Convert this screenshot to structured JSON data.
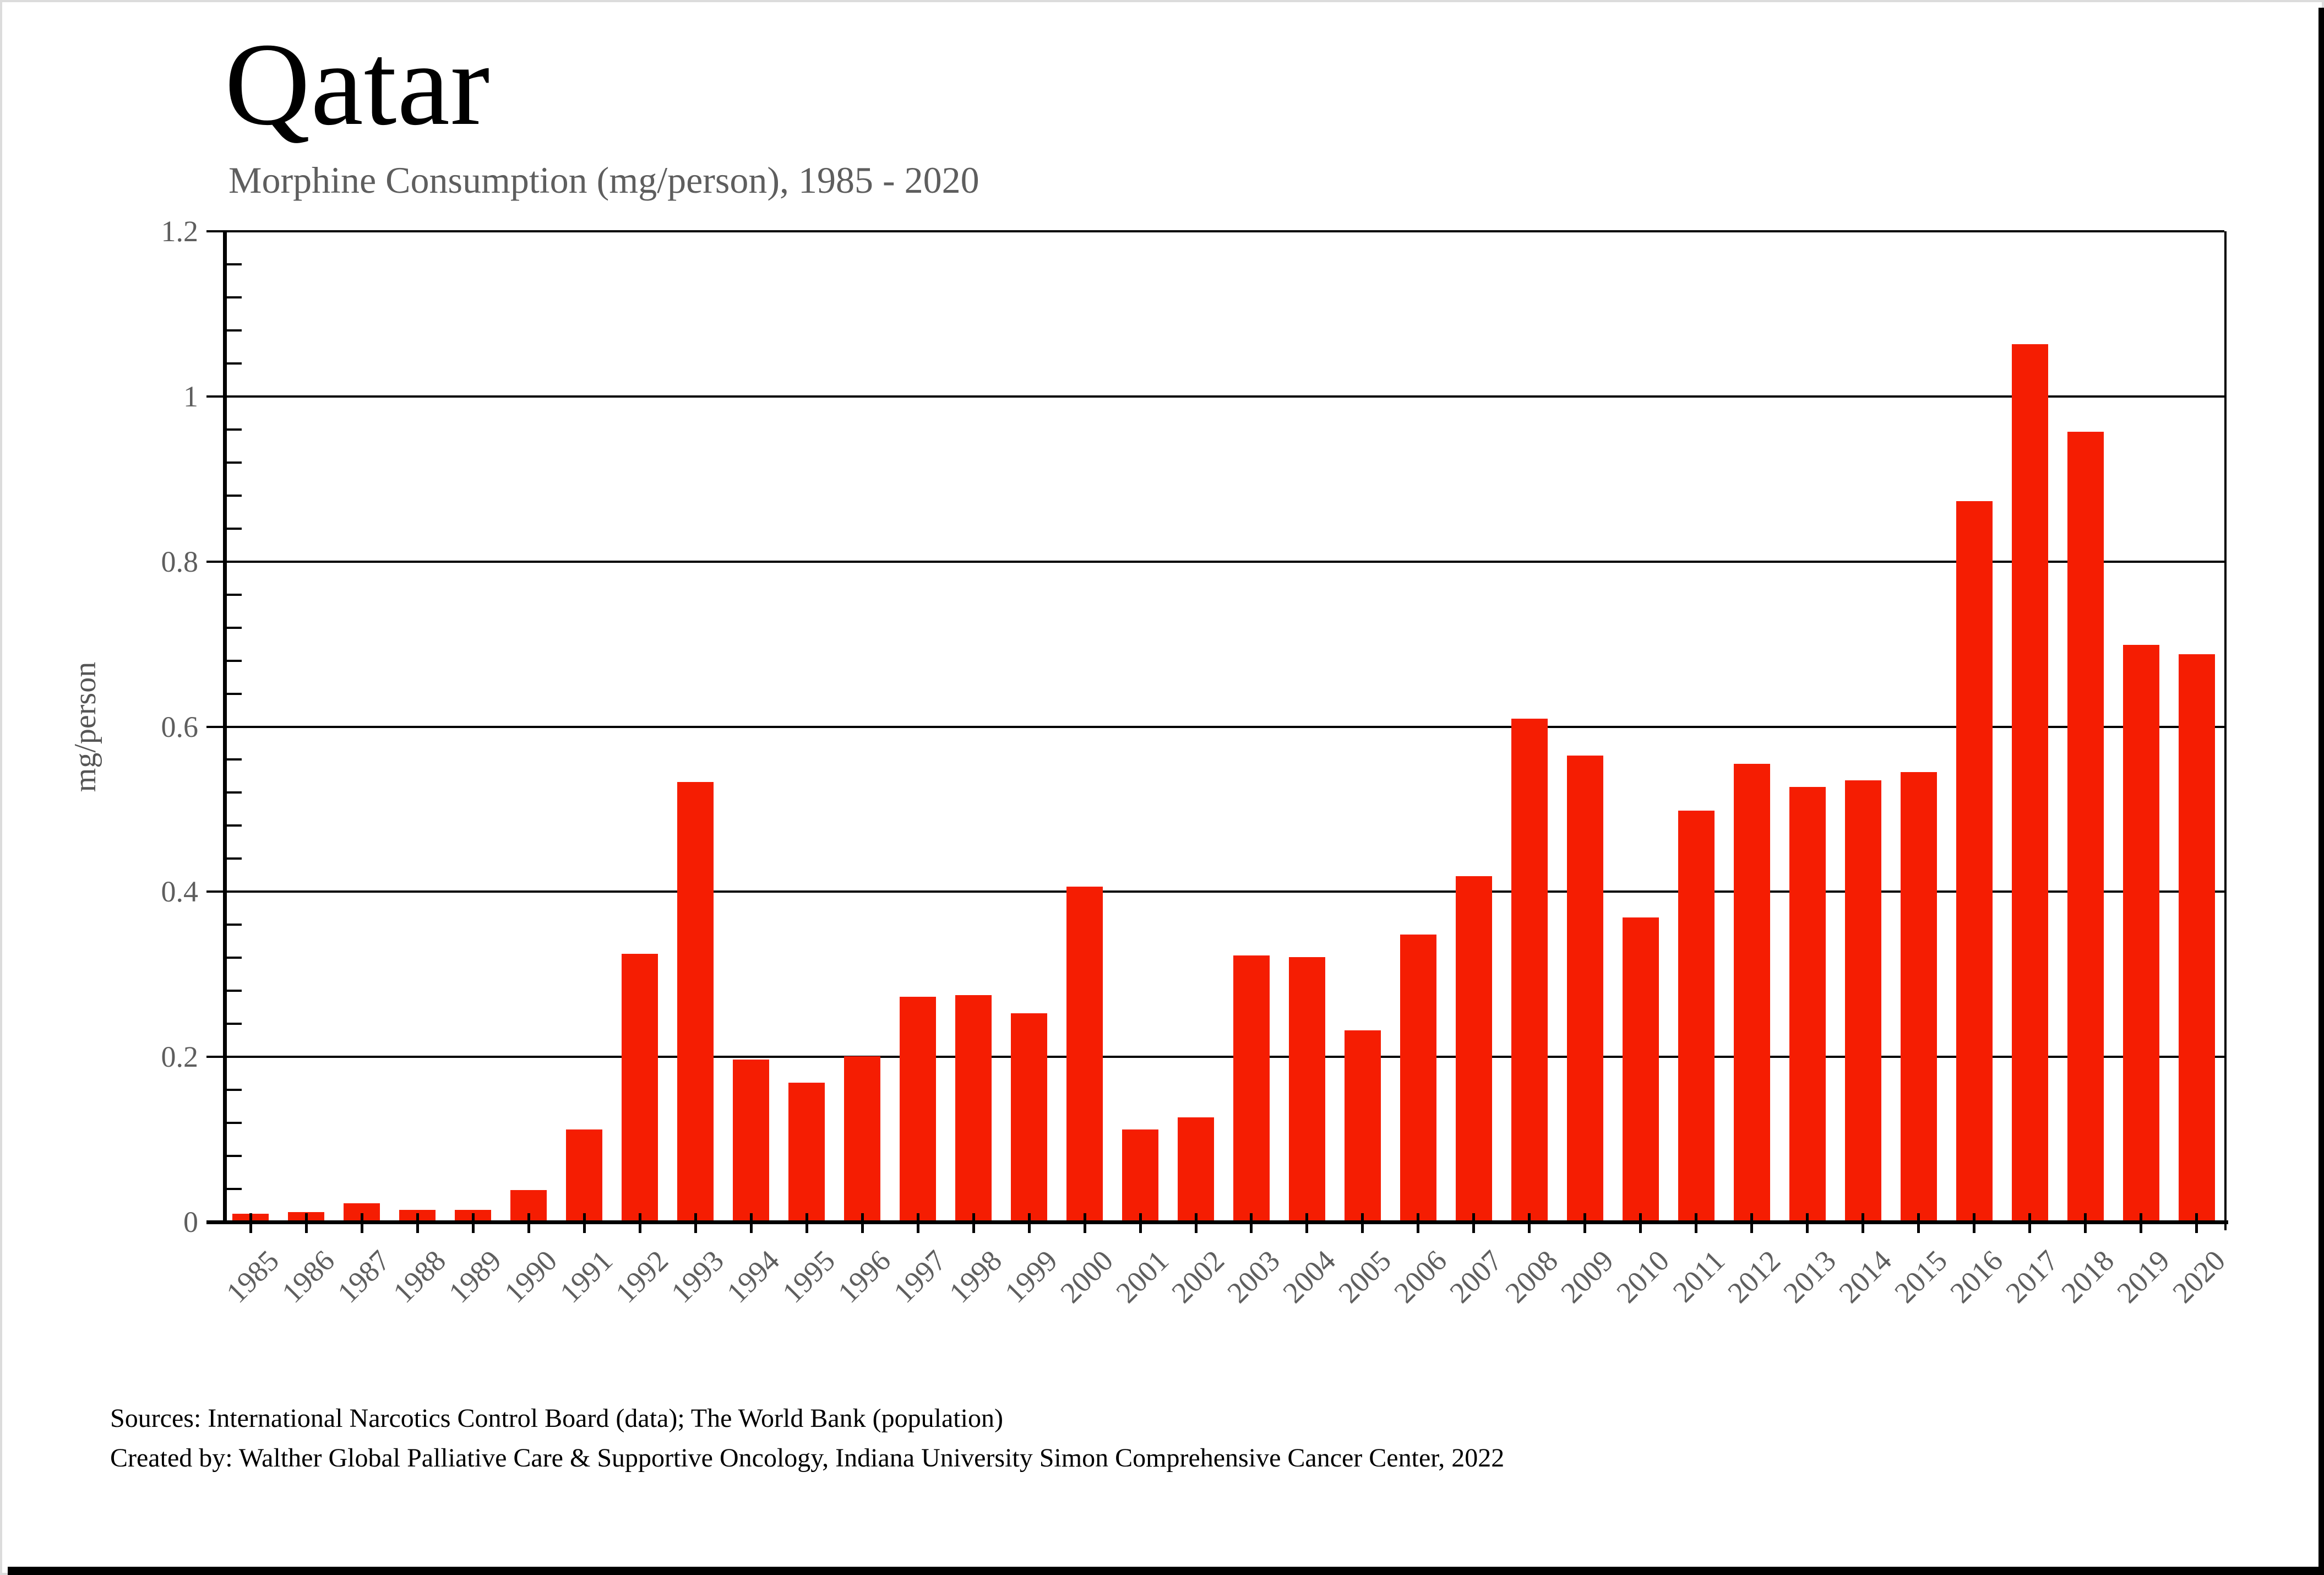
{
  "header": {
    "title": "Qatar",
    "subtitle": "Morphine Consumption (mg/person), 1985 - 2020"
  },
  "footer": {
    "sources_line1": "Sources: International Narcotics Control Board (data); The World Bank (population)",
    "sources_line2": "Created by: Walther  Global Palliative Care & Supportive Oncology, Indiana University Simon Comprehensive Cancer Center, 2022"
  },
  "colors": {
    "bar": "#f51d02",
    "axis": "#000000",
    "muted_text": "#5e5e5e",
    "frame_border": "#dcdcdc",
    "frame_shadow": "#000000"
  },
  "chart_data": {
    "type": "bar",
    "title": "Qatar",
    "subtitle": "Morphine Consumption (mg/person), 1985 - 2020",
    "xlabel": "",
    "ylabel": "mg/person",
    "ylim": [
      0,
      1.2
    ],
    "y_major_ticks": [
      0,
      0.2,
      0.4,
      0.6,
      0.8,
      1,
      1.2
    ],
    "y_major_tick_labels": [
      "0",
      "0.2",
      "0.4",
      "0.6",
      "0.8",
      "1",
      "1.2"
    ],
    "y_minor_step": 0.04,
    "grid": "horizontal-major",
    "legend": "none",
    "categories": [
      "1985",
      "1986",
      "1987",
      "1988",
      "1989",
      "1990",
      "1991",
      "1992",
      "1993",
      "1994",
      "1995",
      "1996",
      "1997",
      "1998",
      "1999",
      "2000",
      "2001",
      "2002",
      "2003",
      "2004",
      "2005",
      "2006",
      "2007",
      "2008",
      "2009",
      "2010",
      "2011",
      "2012",
      "2013",
      "2014",
      "2015",
      "2016",
      "2017",
      "2018",
      "2019",
      "2020"
    ],
    "values": [
      0.01,
      0.012,
      0.023,
      0.015,
      0.015,
      0.039,
      0.112,
      0.325,
      0.533,
      0.197,
      0.169,
      0.201,
      0.273,
      0.275,
      0.253,
      0.406,
      0.112,
      0.127,
      0.323,
      0.321,
      0.232,
      0.348,
      0.419,
      0.61,
      0.565,
      0.369,
      0.498,
      0.555,
      0.527,
      0.535,
      0.545,
      0.873,
      1.063,
      0.957,
      0.699,
      0.688
    ]
  }
}
